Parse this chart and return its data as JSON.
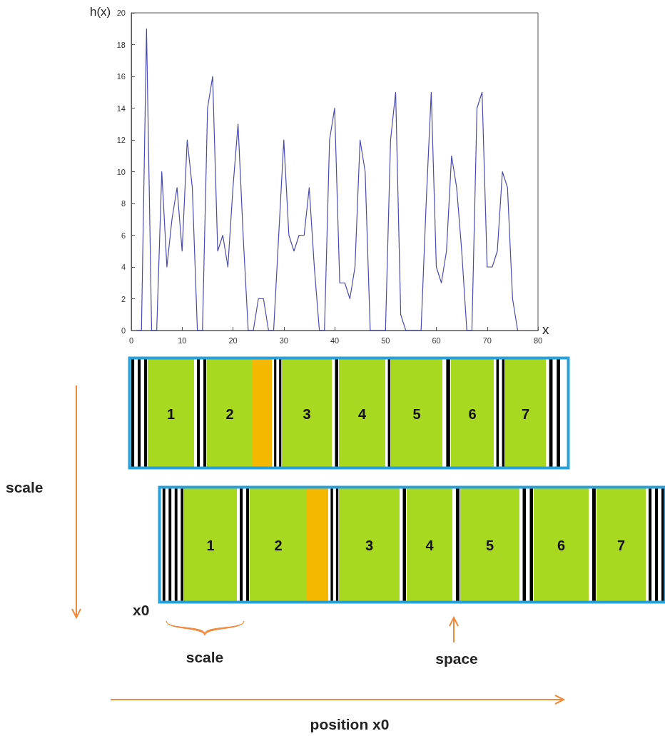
{
  "chart_data": {
    "type": "line",
    "xlabel": "x",
    "ylabel": "h(x)",
    "x": [
      1,
      2,
      3,
      4,
      5,
      6,
      7,
      8,
      9,
      10,
      11,
      12,
      13,
      14,
      15,
      16,
      17,
      18,
      19,
      20,
      21,
      22,
      23,
      24,
      25,
      26,
      27,
      28,
      29,
      30,
      31,
      32,
      33,
      34,
      35,
      36,
      37,
      38,
      39,
      40,
      41,
      42,
      43,
      44,
      45,
      46,
      47,
      48,
      49,
      50,
      51,
      52,
      53,
      54,
      55,
      56,
      57,
      58,
      59,
      60,
      61,
      62,
      63,
      64,
      65,
      66,
      67,
      68,
      69,
      70,
      71,
      72,
      73,
      74,
      75,
      76
    ],
    "series": [
      {
        "color": "#4a4aa8",
        "values": [
          0,
          0,
          19,
          0,
          0,
          10,
          4,
          7,
          9,
          5,
          12,
          9,
          0,
          0,
          14,
          16,
          5,
          6,
          4,
          9,
          13,
          6,
          0,
          0,
          2,
          2,
          0,
          0,
          6,
          12,
          6,
          5,
          6,
          6,
          9,
          4,
          0,
          0,
          12,
          14,
          3,
          3,
          2,
          4,
          12,
          10,
          0,
          0,
          0,
          0,
          12,
          15,
          1,
          0,
          0,
          0,
          0,
          8,
          15,
          4,
          3,
          5,
          11,
          9,
          5,
          0,
          0,
          14,
          15,
          4,
          4,
          5,
          10,
          9,
          2,
          0
        ]
      }
    ],
    "xlim": [
      0,
      80
    ],
    "xticks": [
      0,
      10,
      20,
      30,
      40,
      50,
      60,
      70,
      80
    ],
    "ylim": [
      0,
      20
    ],
    "yticks": [
      0,
      2,
      4,
      6,
      8,
      10,
      12,
      14,
      16,
      18,
      20
    ],
    "grid": false,
    "marker": "none",
    "line_style": "solid",
    "annotations": [
      "1",
      "2",
      "3",
      "4",
      "5",
      "6",
      "7",
      "1",
      "2",
      "3",
      "4",
      "5",
      "6",
      "7",
      "scale",
      "x0",
      "scale",
      "space",
      "position  x0"
    ]
  }
}
